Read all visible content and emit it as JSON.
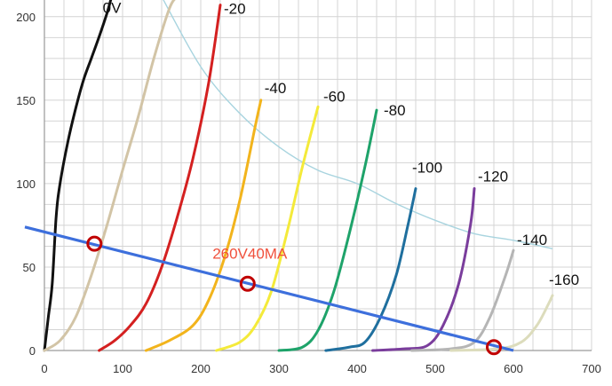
{
  "chart_data": {
    "type": "line",
    "title": "",
    "xlabel": "",
    "ylabel": "",
    "xlim": [
      0,
      700
    ],
    "ylim": [
      0,
      210
    ],
    "grid": true,
    "x_ticks": [
      0,
      100,
      200,
      300,
      400,
      500,
      600,
      700
    ],
    "y_ticks": [
      0,
      50,
      100,
      150,
      200
    ],
    "x_tick_labels": [
      "0",
      "100",
      "200",
      "300",
      "400",
      "500",
      "600",
      "700"
    ],
    "y_tick_labels": [
      "0",
      "50",
      "100",
      "150",
      "200"
    ],
    "series": [
      {
        "name": "0V",
        "color": "#111111",
        "x": [
          0,
          5,
          10,
          15,
          20,
          30,
          40,
          50,
          60,
          70,
          80,
          86
        ],
        "y": [
          0,
          20,
          40,
          80,
          100,
          125,
          145,
          162,
          175,
          188,
          202,
          212
        ]
      },
      {
        "name": "",
        "color": "#d2c4a6",
        "x": [
          0,
          20,
          40,
          60,
          80,
          100,
          120,
          140,
          160,
          170
        ],
        "y": [
          0,
          6,
          20,
          45,
          75,
          108,
          140,
          175,
          205,
          212
        ]
      },
      {
        "name": "-20",
        "color": "#d42020",
        "x": [
          70,
          90,
          110,
          130,
          150,
          170,
          190,
          210,
          225
        ],
        "y": [
          0,
          6,
          15,
          28,
          50,
          80,
          115,
          160,
          207
        ]
      },
      {
        "name": "-40",
        "color": "#f2b41c",
        "x": [
          130,
          160,
          190,
          210,
          230,
          250,
          270,
          277
        ],
        "y": [
          0,
          6,
          15,
          30,
          55,
          90,
          135,
          150
        ]
      },
      {
        "name": "-60",
        "color": "#f4ea3a",
        "x": [
          220,
          250,
          270,
          290,
          310,
          330,
          350
        ],
        "y": [
          0,
          5,
          15,
          35,
          70,
          110,
          146
        ]
      },
      {
        "name": "-80",
        "color": "#1ea36a",
        "x": [
          300,
          330,
          350,
          370,
          390,
          410,
          425
        ],
        "y": [
          0,
          2,
          12,
          35,
          70,
          110,
          144
        ]
      },
      {
        "name": "-100",
        "color": "#1f6f9e",
        "x": [
          360,
          390,
          410,
          430,
          450,
          465,
          475
        ],
        "y": [
          0,
          2,
          5,
          20,
          45,
          75,
          97
        ]
      },
      {
        "name": "-120",
        "color": "#7a3d9c",
        "x": [
          420,
          460,
          490,
          510,
          530,
          545,
          550
        ],
        "y": [
          0,
          1,
          3,
          15,
          40,
          75,
          97
        ]
      },
      {
        "name": "-140",
        "color": "#b5b5b5",
        "x": [
          470,
          520,
          550,
          570,
          590,
          600
        ],
        "y": [
          0,
          1,
          5,
          20,
          45,
          60
        ]
      },
      {
        "name": "-160",
        "color": "#dcdcbc",
        "x": [
          520,
          580,
          610,
          630,
          645,
          650
        ],
        "y": [
          0,
          1,
          5,
          15,
          28,
          33
        ]
      }
    ],
    "max_dissipation_curve": {
      "color": "#a8d4df",
      "x": [
        150,
        200,
        250,
        300,
        350,
        400,
        450,
        500,
        550,
        600,
        650
      ],
      "y": [
        212,
        170,
        142,
        122,
        108,
        100,
        88,
        78,
        70,
        66,
        61
      ]
    },
    "load_line": {
      "color": "#3d6fdc",
      "x": [
        -25,
        600
      ],
      "y": [
        74,
        0
      ]
    },
    "operating_points": [
      {
        "x": 64,
        "y": 64
      },
      {
        "x": 260,
        "y": 40
      },
      {
        "x": 575,
        "y": 2
      }
    ],
    "annotations": [
      {
        "text": "260V40MA",
        "x": 215,
        "y": 55
      }
    ]
  },
  "curve_labels": [
    {
      "text": "0V",
      "series": 0
    },
    {
      "text": "-20",
      "series": 2
    },
    {
      "text": "-40",
      "series": 3
    },
    {
      "text": "-60",
      "series": 4
    },
    {
      "text": "-80",
      "series": 5
    },
    {
      "text": "-100",
      "series": 6
    },
    {
      "text": "-120",
      "series": 7
    },
    {
      "text": "-140",
      "series": 8
    },
    {
      "text": "-160",
      "series": 9
    }
  ],
  "colors": {
    "grid": "#d4d4d4",
    "axis": "#9a9a9a",
    "marker": "#c00000",
    "annotation": "#f0503c"
  }
}
